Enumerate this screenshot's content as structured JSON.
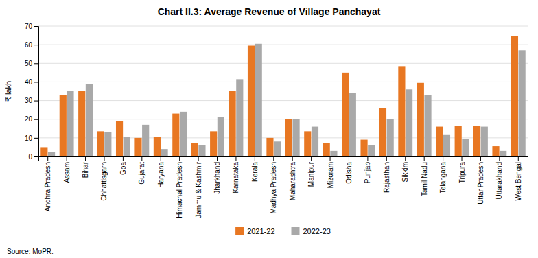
{
  "chart_data": {
    "type": "bar",
    "title": "Chart II.3: Average Revenue of Village Panchayat",
    "y_label": "₹ lakh",
    "annotations": [
      "Source: MoPR."
    ],
    "categories": [
      "Andhra Pradesh",
      "Assam",
      "Bihar",
      "Chhattisgarh",
      "Goa",
      "Gujarat",
      "Haryana",
      "Himachal Pradesh",
      "Jammu & Kashmir",
      "Jharkhand",
      "Karnataka",
      "Kerala",
      "Madhya Pradesh",
      "Maharashtra",
      "Manipur",
      "Mizoram",
      "Odisha",
      "Punjab",
      "Rajasthan",
      "Sikkim",
      "Tamil Nadu",
      "Telangana",
      "Tripura",
      "Uttar Pradesh",
      "Uttarakhand",
      "West Bengal"
    ],
    "series": [
      {
        "name": "2021-22",
        "color": "#E87722",
        "values": [
          5.0,
          33.0,
          35.0,
          13.5,
          19.0,
          10.0,
          10.5,
          23.0,
          7.0,
          13.5,
          35.0,
          59.5,
          10.0,
          20.0,
          13.5,
          7.0,
          45.0,
          9.0,
          26.0,
          48.5,
          39.5,
          16.0,
          16.5,
          16.5,
          5.5,
          64.5
        ]
      },
      {
        "name": "2022-23",
        "color": "#A9A9A9",
        "values": [
          2.5,
          35.0,
          39.0,
          13.0,
          10.5,
          17.0,
          4.0,
          24.0,
          6.0,
          21.0,
          41.5,
          60.5,
          8.0,
          20.0,
          16.0,
          3.0,
          34.0,
          6.0,
          20.0,
          36.0,
          33.0,
          11.5,
          9.5,
          16.0,
          3.0,
          57.0
        ]
      }
    ],
    "ylim": [
      0,
      70
    ],
    "yticks": [
      0,
      10,
      20,
      30,
      40,
      50,
      60,
      70
    ],
    "grid": true,
    "legend": "bottom"
  }
}
